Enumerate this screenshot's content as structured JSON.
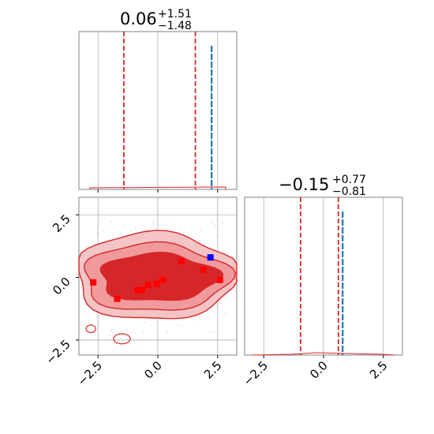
{
  "chart_data": [
    {
      "type": "histogram",
      "panel": "marginal-param-1",
      "title": {
        "main": "0.06",
        "sup": "+1.51",
        "sub": "−1.48"
      },
      "xlim": [
        -3.3,
        3.3
      ],
      "xticks": [
        -2.5,
        0.0,
        2.5
      ],
      "quantile_lines": [
        -1.42,
        1.57
      ],
      "truth_line": 2.25,
      "distribution_note": "broad flat distribution across range",
      "grid": true,
      "colors": {
        "quantile": "#d62728",
        "truth": "#1f77b4",
        "grid": "#b0b0b0"
      }
    },
    {
      "type": "histogram",
      "panel": "marginal-param-2",
      "title": {
        "main": "−0.15",
        "sup": "+0.77",
        "sub": "−0.81"
      },
      "xlim": [
        -3.3,
        3.3
      ],
      "xticks": [
        -2.5,
        0.0,
        2.5
      ],
      "xtick_labels": [
        "−2.5",
        "0.0",
        "2.5"
      ],
      "quantile_lines": [
        -0.96,
        0.62
      ],
      "truth_line": 0.8,
      "grid": true,
      "colors": {
        "quantile": "#d62728",
        "truth": "#1f77b4",
        "grid": "#b0b0b0"
      }
    },
    {
      "type": "contour",
      "panel": "joint-param-1-param-2",
      "xlim": [
        -3.3,
        3.3
      ],
      "ylim": [
        -3.1,
        3.2
      ],
      "xticks": [
        -2.5,
        0.0,
        2.5
      ],
      "xtick_labels": [
        "−2.5",
        "0.0",
        "2.5"
      ],
      "yticks": [
        -2.5,
        0.0,
        2.5
      ],
      "ytick_labels": [
        "−2.5",
        "0.0",
        "2.5"
      ],
      "points": [
        {
          "x": -2.7,
          "y": -0.2
        },
        {
          "x": -1.7,
          "y": -0.85
        },
        {
          "x": -0.85,
          "y": -0.5
        },
        {
          "x": -0.65,
          "y": -0.5
        },
        {
          "x": -0.4,
          "y": -0.3
        },
        {
          "x": -0.05,
          "y": -0.25
        },
        {
          "x": 0.2,
          "y": -0.1
        },
        {
          "x": 1.0,
          "y": 0.65
        },
        {
          "x": 1.9,
          "y": 0.3
        },
        {
          "x": 2.6,
          "y": -0.1
        }
      ],
      "truth_point": {
        "x": 2.2,
        "y": 0.8
      },
      "grid": true,
      "colors": {
        "points": "#ff0000",
        "truth_point": "#0000ff",
        "contour_outer": "#f09a9c",
        "contour_inner": "#d62728",
        "contour_line": "#d62728"
      }
    }
  ]
}
